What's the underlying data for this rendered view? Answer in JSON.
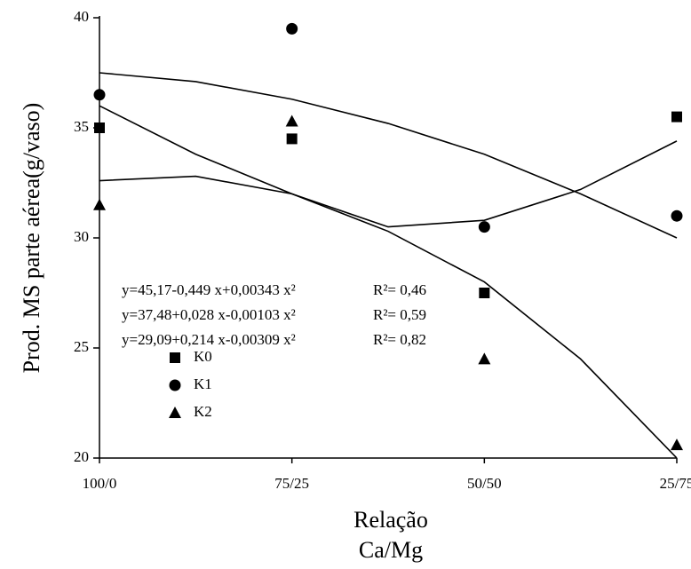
{
  "chart_data": {
    "type": "scatter",
    "ylabel": "Prod. MS parte aérea(g/vaso)",
    "xlabel": [
      "Relação",
      "Ca/Mg"
    ],
    "xlim": [
      100,
      25
    ],
    "xticks": [
      {
        "value": 100,
        "label": "100/0"
      },
      {
        "value": 75,
        "label": "75/25"
      },
      {
        "value": 50,
        "label": "50/50"
      },
      {
        "value": 25,
        "label": "25/75"
      }
    ],
    "ylim": [
      20,
      40
    ],
    "yticks": [
      20,
      25,
      30,
      35,
      40
    ],
    "series": [
      {
        "name": "K0",
        "marker": "square",
        "color": "#000000",
        "x": [
          100,
          75,
          50,
          25
        ],
        "values": [
          35.0,
          34.5,
          27.5,
          35.5
        ]
      },
      {
        "name": "K1",
        "marker": "circle",
        "color": "#000000",
        "x": [
          100,
          75,
          50,
          25
        ],
        "values": [
          36.5,
          39.5,
          30.5,
          31.0
        ]
      },
      {
        "name": "K2",
        "marker": "triangle",
        "color": "#000000",
        "x": [
          100,
          75,
          50,
          25
        ],
        "values": [
          31.5,
          35.3,
          24.5,
          20.6
        ]
      }
    ],
    "fits": [
      {
        "x": [
          100,
          87.5,
          75,
          62.5,
          50,
          37.5,
          25
        ],
        "values": [
          37.5,
          37.1,
          36.3,
          35.2,
          33.8,
          32.0,
          30.0
        ]
      },
      {
        "x": [
          100,
          87.5,
          75,
          62.5,
          50,
          37.5,
          25
        ],
        "values": [
          36.0,
          33.8,
          32.0,
          30.3,
          28.0,
          24.5,
          20.0
        ]
      },
      {
        "x": [
          100,
          87.5,
          75,
          62.5,
          50,
          37.5,
          25
        ],
        "values": [
          32.6,
          32.8,
          32.0,
          30.5,
          30.8,
          32.2,
          34.4
        ]
      }
    ],
    "annotations": [
      {
        "equation": "y=45,17-0,449 x+0,00343 x²",
        "r2": "R²= 0,46"
      },
      {
        "equation": "y=37,48+0,028 x-0,00103 x²",
        "r2": "R²= 0,59"
      },
      {
        "equation": "y=29,09+0,214 x-0,00309 x²",
        "r2": "R²= 0,82"
      }
    ]
  }
}
